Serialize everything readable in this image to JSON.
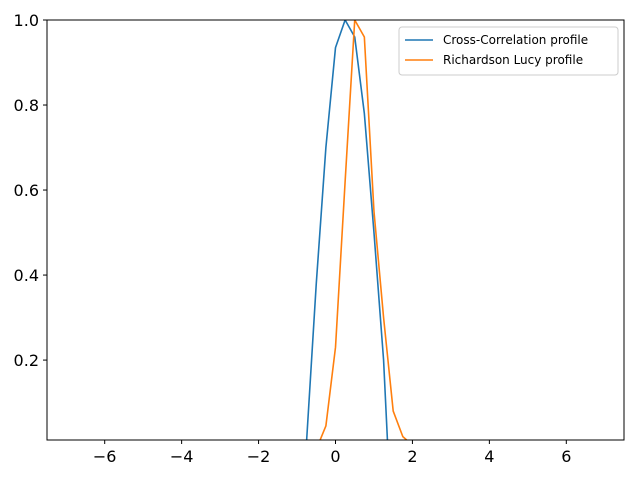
{
  "chart_data": {
    "type": "line",
    "title": "",
    "xlabel": "",
    "ylabel": "",
    "xlim": [
      -7.5,
      7.5
    ],
    "ylim": [
      0.012,
      1.0
    ],
    "xticks": [
      -6,
      -4,
      -2,
      0,
      2,
      4,
      6
    ],
    "xtick_labels": [
      "−6",
      "−4",
      "−2",
      "0",
      "2",
      "4",
      "6"
    ],
    "yticks": [
      0.2,
      0.4,
      0.6,
      0.8,
      1.0
    ],
    "ytick_labels": [
      "0.2",
      "0.4",
      "0.6",
      "0.8",
      "1.0"
    ],
    "grid": false,
    "legend_position": "top-right",
    "series": [
      {
        "name": "Cross-Correlation profile",
        "color": "#1f77b4",
        "x": [
          -0.75,
          -0.5,
          -0.25,
          0.0,
          0.25,
          0.5,
          0.75,
          1.0,
          1.25,
          1.35
        ],
        "y": [
          0.012,
          0.38,
          0.7,
          0.935,
          1.0,
          0.96,
          0.78,
          0.5,
          0.2,
          0.012
        ]
      },
      {
        "name": "Richardson Lucy profile",
        "color": "#ff7f0e",
        "x": [
          -0.4,
          -0.25,
          0.0,
          0.25,
          0.5,
          0.75,
          1.0,
          1.25,
          1.5,
          1.75,
          1.85
        ],
        "y": [
          0.012,
          0.045,
          0.23,
          0.62,
          1.0,
          0.96,
          0.55,
          0.3,
          0.08,
          0.02,
          0.012
        ]
      }
    ]
  }
}
